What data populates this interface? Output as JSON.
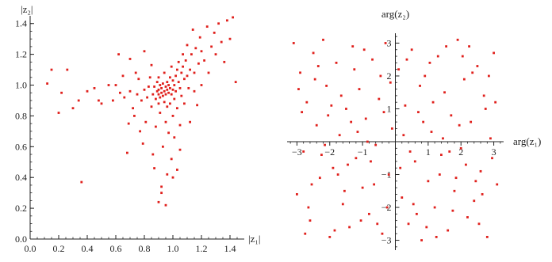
{
  "colors": {
    "points": "#e0201c",
    "axis": "#222222"
  },
  "chart_data": [
    {
      "type": "scatter",
      "xlabel": "|z₁|",
      "ylabel": "|z₂|",
      "xlim": [
        0.0,
        1.5
      ],
      "ylim": [
        0.0,
        1.45
      ],
      "xticks": [
        0.0,
        0.2,
        0.4,
        0.6,
        0.8,
        1.0,
        1.2,
        1.4
      ],
      "xtick_labels": [
        "0.0",
        "0.2",
        "0.4",
        "0.6",
        "0.8",
        "1.0",
        "1.2",
        "1.4"
      ],
      "yticks": [
        0.0,
        0.2,
        0.4,
        0.6,
        0.8,
        1.0,
        1.2,
        1.4
      ],
      "ytick_labels": [
        "0.0",
        "0.2",
        "0.4",
        "0.6",
        "0.8",
        "1.0",
        "1.2",
        "1.4"
      ],
      "grid": false,
      "series": [
        {
          "values": [
            [
              0.12,
              1.01
            ],
            [
              0.15,
              1.1
            ],
            [
              0.2,
              0.82
            ],
            [
              0.22,
              0.95
            ],
            [
              0.26,
              1.1
            ],
            [
              0.3,
              0.85
            ],
            [
              0.34,
              0.9
            ],
            [
              0.36,
              0.37
            ],
            [
              0.4,
              0.96
            ],
            [
              0.45,
              0.98
            ],
            [
              0.48,
              0.9
            ],
            [
              0.5,
              0.88
            ],
            [
              0.55,
              1.0
            ],
            [
              0.6,
              1.0
            ],
            [
              0.62,
              1.2
            ],
            [
              0.63,
              0.95
            ],
            [
              0.65,
              1.06
            ],
            [
              0.68,
              0.56
            ],
            [
              0.7,
              0.96
            ],
            [
              0.7,
              1.17
            ],
            [
              0.72,
              0.85
            ],
            [
              0.74,
              1.08
            ],
            [
              0.75,
              0.94
            ],
            [
              0.76,
              1.04
            ],
            [
              0.78,
              0.9
            ],
            [
              0.8,
              0.97
            ],
            [
              0.8,
              1.22
            ],
            [
              0.82,
              0.92
            ],
            [
              0.83,
              0.99
            ],
            [
              0.84,
              1.05
            ],
            [
              0.85,
              0.86
            ],
            [
              0.85,
              1.13
            ],
            [
              0.86,
              0.94
            ],
            [
              0.87,
              0.99
            ],
            [
              0.87,
              0.46
            ],
            [
              0.88,
              0.91
            ],
            [
              0.88,
              0.73
            ],
            [
              0.89,
              0.96
            ],
            [
              0.89,
              1.02
            ],
            [
              0.9,
              0.88
            ],
            [
              0.9,
              0.94
            ],
            [
              0.9,
              0.97
            ],
            [
              0.9,
              1.05
            ],
            [
              0.9,
              0.24
            ],
            [
              0.91,
              0.92
            ],
            [
              0.91,
              1.0
            ],
            [
              0.91,
              0.82
            ],
            [
              0.92,
              0.95
            ],
            [
              0.92,
              0.98
            ],
            [
              0.92,
              0.3
            ],
            [
              0.93,
              0.93
            ],
            [
              0.93,
              1.01
            ],
            [
              0.93,
              0.6
            ],
            [
              0.94,
              0.96
            ],
            [
              0.94,
              0.89
            ],
            [
              0.94,
              1.08
            ],
            [
              0.95,
              0.94
            ],
            [
              0.95,
              0.99
            ],
            [
              0.95,
              0.76
            ],
            [
              0.96,
              0.97
            ],
            [
              0.96,
              1.02
            ],
            [
              0.96,
              0.86
            ],
            [
              0.96,
              0.42
            ],
            [
              0.97,
              0.95
            ],
            [
              0.97,
              1.0
            ],
            [
              0.97,
              0.69
            ],
            [
              0.98,
              0.98
            ],
            [
              0.98,
              1.05
            ],
            [
              0.98,
              0.88
            ],
            [
              0.99,
              0.94
            ],
            [
              0.99,
              1.12
            ],
            [
              0.99,
              0.52
            ],
            [
              1.0,
              0.97
            ],
            [
              1.0,
              1.03
            ],
            [
              1.0,
              0.8
            ],
            [
              1.01,
              1.0
            ],
            [
              1.01,
              0.91
            ],
            [
              1.01,
              0.66
            ],
            [
              1.02,
              1.06
            ],
            [
              1.02,
              0.96
            ],
            [
              1.03,
              1.1
            ],
            [
              1.03,
              0.85
            ],
            [
              1.03,
              0.45
            ],
            [
              1.04,
              1.02
            ],
            [
              1.04,
              1.15
            ],
            [
              1.05,
              0.98
            ],
            [
              1.05,
              0.74
            ],
            [
              1.06,
              1.08
            ],
            [
              1.06,
              0.93
            ],
            [
              1.07,
              1.12
            ],
            [
              1.07,
              1.2
            ],
            [
              1.08,
              1.04
            ],
            [
              1.08,
              0.88
            ],
            [
              1.09,
              1.16
            ],
            [
              1.1,
              1.06
            ],
            [
              1.1,
              1.26
            ],
            [
              1.11,
              0.98
            ],
            [
              1.12,
              1.1
            ],
            [
              1.13,
              1.2
            ],
            [
              1.14,
              1.36
            ],
            [
              1.15,
              1.08
            ],
            [
              1.16,
              1.24
            ],
            [
              1.17,
              0.87
            ],
            [
              1.18,
              1.14
            ],
            [
              1.19,
              1.31
            ],
            [
              1.2,
              1.22
            ],
            [
              1.22,
              1.16
            ],
            [
              1.24,
              1.38
            ],
            [
              1.25,
              1.08
            ],
            [
              1.27,
              1.25
            ],
            [
              1.29,
              1.34
            ],
            [
              1.3,
              1.2
            ],
            [
              1.32,
              1.4
            ],
            [
              1.34,
              1.28
            ],
            [
              1.36,
              1.15
            ],
            [
              1.38,
              1.42
            ],
            [
              1.4,
              1.3
            ],
            [
              1.42,
              1.44
            ],
            [
              1.44,
              1.02
            ],
            [
              0.79,
              0.62
            ],
            [
              0.81,
              0.76
            ],
            [
              0.86,
              0.55
            ],
            [
              0.92,
              0.34
            ],
            [
              0.95,
              0.22
            ],
            [
              1.0,
              0.4
            ],
            [
              1.05,
              0.58
            ],
            [
              0.77,
              0.7
            ],
            [
              0.73,
              0.8
            ],
            [
              0.69,
              0.75
            ],
            [
              0.66,
              0.92
            ],
            [
              0.58,
              0.9
            ],
            [
              1.12,
              0.76
            ],
            [
              1.2,
              1.0
            ],
            [
              1.15,
              0.96
            ]
          ]
        }
      ]
    },
    {
      "type": "scatter",
      "xlabel": "arg(z₁)",
      "ylabel": "arg(z₂)",
      "xlim": [
        -3.3,
        3.3
      ],
      "ylim": [
        -3.3,
        3.3
      ],
      "xticks": [
        -3,
        -2,
        -1,
        1,
        2,
        3
      ],
      "xtick_labels": [
        "−3",
        "−2",
        "−1",
        "1",
        "2",
        "3"
      ],
      "yticks": [
        -3,
        -2,
        -1,
        1,
        2,
        3
      ],
      "ytick_labels": [
        "−3",
        "−2",
        "−1",
        "1",
        "2",
        "3"
      ],
      "grid": false,
      "series": [
        {
          "values": [
            [
              -3.1,
              3.0
            ],
            [
              -2.9,
              2.1
            ],
            [
              -2.8,
              -0.3
            ],
            [
              -2.7,
              1.2
            ],
            [
              -2.6,
              -2.4
            ],
            [
              -2.5,
              2.7
            ],
            [
              -2.4,
              0.5
            ],
            [
              -2.3,
              -1.1
            ],
            [
              -2.2,
              3.1
            ],
            [
              -2.1,
              1.7
            ],
            [
              -2.0,
              -2.9
            ],
            [
              -1.9,
              -0.8
            ],
            [
              -1.8,
              2.4
            ],
            [
              -1.7,
              0.2
            ],
            [
              -1.6,
              -1.9
            ],
            [
              -1.5,
              1.0
            ],
            [
              -1.4,
              -2.6
            ],
            [
              -1.3,
              2.9
            ],
            [
              -1.2,
              -0.5
            ],
            [
              -1.1,
              1.6
            ],
            [
              -1.0,
              -1.4
            ],
            [
              -0.9,
              0.7
            ],
            [
              -0.8,
              -2.2
            ],
            [
              -0.7,
              2.5
            ],
            [
              -0.6,
              -0.1
            ],
            [
              -0.5,
              1.3
            ],
            [
              -0.4,
              -2.8
            ],
            [
              -0.3,
              3.0
            ],
            [
              -0.2,
              -1.0
            ],
            [
              -0.1,
              0.4
            ],
            [
              0.1,
              2.2
            ],
            [
              0.2,
              -1.7
            ],
            [
              0.3,
              1.1
            ],
            [
              0.4,
              -2.5
            ],
            [
              0.5,
              2.8
            ],
            [
              0.6,
              -0.6
            ],
            [
              0.7,
              0.9
            ],
            [
              0.8,
              -3.0
            ],
            [
              0.9,
              2.0
            ],
            [
              1.0,
              -1.2
            ],
            [
              1.1,
              0.3
            ],
            [
              1.2,
              -2.0
            ],
            [
              1.3,
              2.6
            ],
            [
              1.4,
              -0.4
            ],
            [
              1.5,
              1.5
            ],
            [
              1.6,
              -2.7
            ],
            [
              1.7,
              0.8
            ],
            [
              1.8,
              -1.5
            ],
            [
              1.9,
              3.1
            ],
            [
              2.0,
              -0.2
            ],
            [
              2.1,
              1.9
            ],
            [
              2.2,
              -2.3
            ],
            [
              2.3,
              0.6
            ],
            [
              2.4,
              -1.8
            ],
            [
              2.5,
              2.3
            ],
            [
              2.6,
              -0.9
            ],
            [
              2.7,
              1.4
            ],
            [
              2.8,
              -2.9
            ],
            [
              2.9,
              0.1
            ],
            [
              3.0,
              2.7
            ],
            [
              3.1,
              -1.3
            ],
            [
              -3.0,
              -1.6
            ],
            [
              -2.85,
              0.9
            ],
            [
              -2.65,
              -2.0
            ],
            [
              -2.45,
              1.9
            ],
            [
              -2.25,
              -0.4
            ],
            [
              -2.05,
              0.8
            ],
            [
              -1.85,
              -2.7
            ],
            [
              -1.65,
              1.4
            ],
            [
              -1.45,
              -0.7
            ],
            [
              -1.25,
              2.2
            ],
            [
              -1.05,
              -2.4
            ],
            [
              -0.85,
              0.0
            ],
            [
              -0.65,
              -1.3
            ],
            [
              -0.45,
              2.0
            ],
            [
              -0.25,
              -2.0
            ],
            [
              0.15,
              -0.8
            ],
            [
              0.35,
              2.5
            ],
            [
              0.55,
              -1.9
            ],
            [
              0.75,
              1.7
            ],
            [
              0.95,
              -2.6
            ],
            [
              1.15,
              1.2
            ],
            [
              1.35,
              -1.0
            ],
            [
              1.55,
              2.9
            ],
            [
              1.75,
              -2.1
            ],
            [
              1.95,
              0.5
            ],
            [
              2.15,
              -0.7
            ],
            [
              2.35,
              2.1
            ],
            [
              2.55,
              -2.5
            ],
            [
              2.75,
              1.0
            ],
            [
              2.95,
              -0.5
            ],
            [
              -2.95,
              1.6
            ],
            [
              -2.55,
              -1.3
            ],
            [
              -2.15,
              -0.1
            ],
            [
              -1.75,
              -1.0
            ],
            [
              -1.35,
              0.6
            ],
            [
              -0.95,
              2.8
            ],
            [
              -0.55,
              -2.5
            ],
            [
              -0.15,
              1.8
            ],
            [
              0.25,
              0.2
            ],
            [
              0.65,
              -2.2
            ],
            [
              1.05,
              2.4
            ],
            [
              1.45,
              0.1
            ],
            [
              1.85,
              -1.1
            ],
            [
              2.25,
              2.9
            ],
            [
              2.65,
              -1.6
            ],
            [
              3.05,
              1.2
            ],
            [
              -2.75,
              -2.8
            ],
            [
              -2.35,
              2.3
            ],
            [
              -1.95,
              1.1
            ],
            [
              -1.55,
              -1.5
            ],
            [
              -1.15,
              0.3
            ],
            [
              -0.75,
              -0.6
            ],
            [
              -0.35,
              0.9
            ],
            [
              0.45,
              -0.3
            ],
            [
              0.85,
              0.6
            ],
            [
              1.25,
              -2.9
            ],
            [
              1.65,
              -0.3
            ],
            [
              2.05,
              2.6
            ],
            [
              2.45,
              -1.2
            ],
            [
              2.85,
              2.0
            ]
          ]
        }
      ]
    }
  ]
}
